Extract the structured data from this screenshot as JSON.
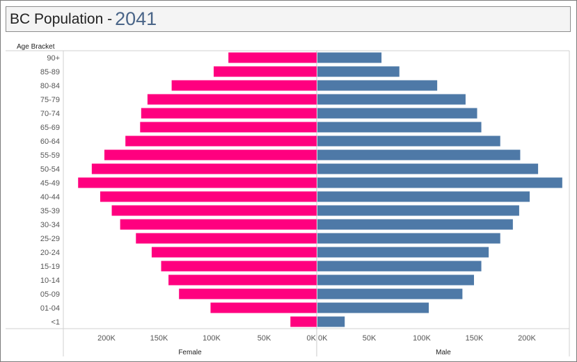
{
  "header": {
    "title": "BC Population - ",
    "year": "2041"
  },
  "chart_data": {
    "type": "bar",
    "orientation": "horizontal-diverging",
    "row_header": "Age Bracket",
    "categories": [
      "90+",
      "85-89",
      "80-84",
      "75-79",
      "70-74",
      "65-69",
      "60-64",
      "55-59",
      "50-54",
      "45-49",
      "40-44",
      "35-39",
      "30-34",
      "25-29",
      "20-24",
      "15-19",
      "10-14",
      "05-09",
      "01-04",
      "<1"
    ],
    "series": [
      {
        "name": "Female",
        "color": "#ff007f",
        "values": [
          84000,
          98000,
          138000,
          161000,
          167000,
          168000,
          182000,
          202000,
          214000,
          227000,
          206000,
          195000,
          187000,
          172000,
          157000,
          148000,
          141000,
          131000,
          101000,
          25000
        ]
      },
      {
        "name": "Male",
        "color": "#4e79a7",
        "values": [
          61000,
          78000,
          114000,
          141000,
          152000,
          156000,
          174000,
          193000,
          210000,
          233000,
          202000,
          192000,
          186000,
          174000,
          163000,
          156000,
          149000,
          138000,
          106000,
          26000
        ]
      }
    ],
    "female_axis": {
      "ticks": [
        "200K",
        "150K",
        "100K",
        "50K",
        "0K"
      ],
      "tick_values": [
        200000,
        150000,
        100000,
        50000,
        0
      ],
      "xlabel": "Female"
    },
    "male_axis": {
      "ticks": [
        "0K",
        "50K",
        "100K",
        "150K",
        "200K"
      ],
      "tick_values": [
        0,
        50000,
        100000,
        150000,
        200000
      ],
      "xlabel": "Male"
    },
    "xlim": [
      0,
      235000
    ],
    "grid": false
  }
}
